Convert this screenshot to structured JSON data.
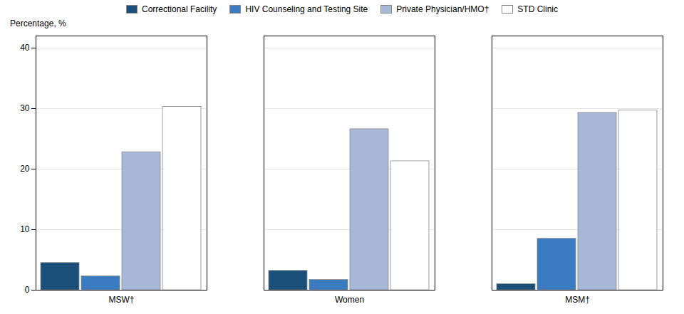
{
  "chart_data": {
    "type": "bar",
    "categories": [
      "MSW†",
      "Women",
      "MSM†"
    ],
    "series": [
      {
        "name": "Correctional Facility",
        "color": "#1a4f7a",
        "values": [
          4.5,
          3.2,
          1.0
        ]
      },
      {
        "name": "HIV Counseling and Testing Site",
        "color": "#3a7cbf",
        "values": [
          2.3,
          1.7,
          8.5
        ]
      },
      {
        "name": "Private Physician/HMO†",
        "color": "#a8b8d8",
        "values": [
          22.8,
          26.6,
          29.3
        ]
      },
      {
        "name": "STD Clinic",
        "color": "#ffffff",
        "values": [
          30.3,
          21.3,
          29.7
        ]
      }
    ],
    "ylabel": "Percentage, %",
    "ylim": [
      0,
      42
    ],
    "yticks": [
      0,
      10,
      20,
      30,
      40
    ],
    "grid": true,
    "legend": "top"
  }
}
